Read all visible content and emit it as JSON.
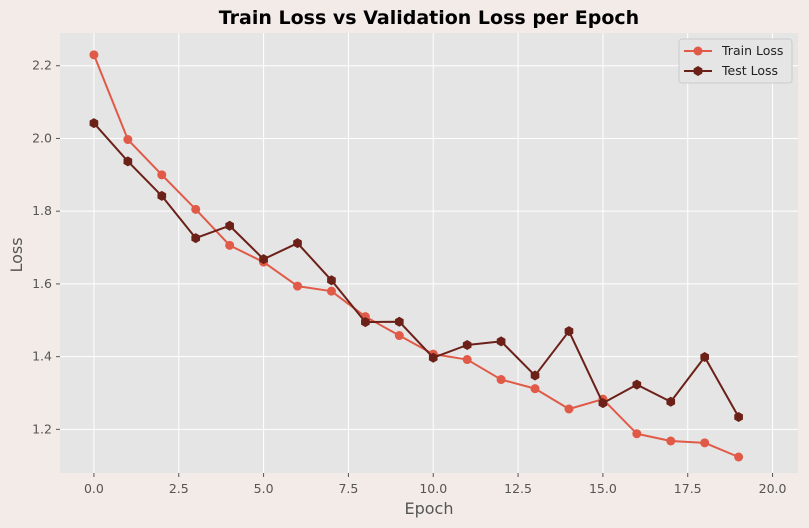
{
  "chart_data": {
    "type": "line",
    "title": "Train Loss vs Validation Loss per Epoch",
    "xlabel": "Epoch",
    "ylabel": "Loss",
    "xlim": [
      -1.0,
      20.75
    ],
    "ylim": [
      1.08,
      2.29
    ],
    "x_ticks": [
      0.0,
      2.5,
      5.0,
      7.5,
      10.0,
      12.5,
      15.0,
      17.5,
      20.0
    ],
    "x_tick_labels": [
      "0.0",
      "2.5",
      "5.0",
      "7.5",
      "10.0",
      "12.5",
      "15.0",
      "17.5",
      "20.0"
    ],
    "y_ticks": [
      1.2,
      1.4,
      1.6,
      1.8,
      2.0,
      2.2
    ],
    "y_tick_labels": [
      "1.2",
      "1.4",
      "1.6",
      "1.8",
      "2.0",
      "2.2"
    ],
    "grid": true,
    "legend_position": "top-right",
    "x": [
      0,
      1,
      2,
      3,
      4,
      5,
      6,
      7,
      8,
      9,
      10,
      11,
      12,
      13,
      14,
      15,
      16,
      17,
      18,
      19
    ],
    "series": [
      {
        "name": "Train Loss",
        "color": "#e05a47",
        "marker": "circle",
        "values": [
          2.23,
          1.997,
          1.9,
          1.805,
          1.706,
          1.66,
          1.594,
          1.58,
          1.51,
          1.458,
          1.407,
          1.392,
          1.337,
          1.312,
          1.256,
          1.283,
          1.188,
          1.168,
          1.163,
          1.124
        ]
      },
      {
        "name": "Test Loss",
        "color": "#6b2018",
        "marker": "hexagon",
        "values": [
          2.042,
          1.937,
          1.842,
          1.726,
          1.76,
          1.668,
          1.712,
          1.61,
          1.495,
          1.496,
          1.397,
          1.432,
          1.442,
          1.348,
          1.47,
          1.272,
          1.323,
          1.276,
          1.399,
          1.234
        ]
      }
    ]
  },
  "colors": {
    "figure_background": "#f3ebe7",
    "plot_background": "#e5e5e5",
    "grid": "#ffffff"
  }
}
